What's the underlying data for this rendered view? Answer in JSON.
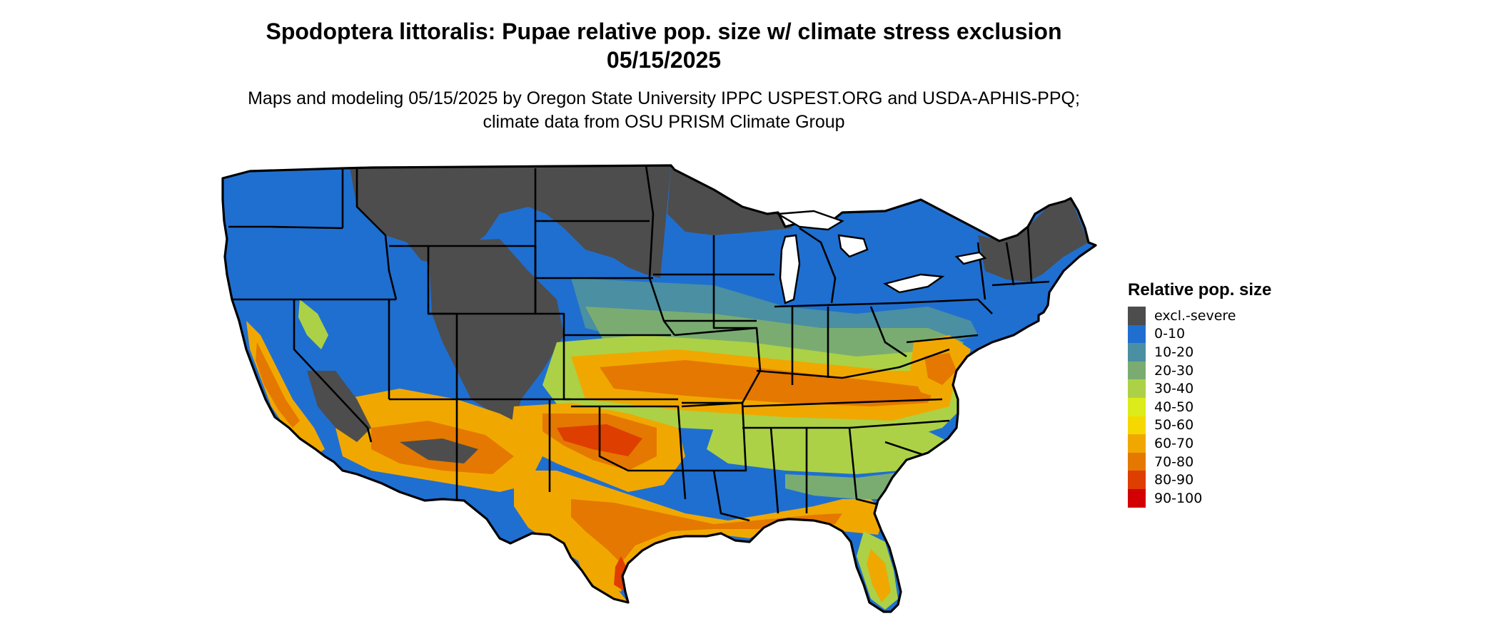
{
  "title": "Spodoptera littoralis: Pupae relative pop. size w/ climate stress exclusion 05/15/2025",
  "subtitle": "Maps and modeling 05/15/2025 by Oregon State University IPPC USPEST.ORG and USDA-APHIS-PPQ; climate data from OSU PRISM Climate Group",
  "map": {
    "region": "Contiguous United States",
    "legend": {
      "title": "Relative pop. size",
      "items": [
        {
          "label": "excl.-severe",
          "color": "#4d4d4d"
        },
        {
          "label": "0-10",
          "color": "#1f6fd1"
        },
        {
          "label": "10-20",
          "color": "#4a8fa2"
        },
        {
          "label": "20-30",
          "color": "#7aac72"
        },
        {
          "label": "30-40",
          "color": "#acd146"
        },
        {
          "label": "40-50",
          "color": "#dcec1a"
        },
        {
          "label": "50-60",
          "color": "#f5d800"
        },
        {
          "label": "60-70",
          "color": "#f0a800"
        },
        {
          "label": "70-80",
          "color": "#e57800"
        },
        {
          "label": "80-90",
          "color": "#de3e00"
        },
        {
          "label": "90-100",
          "color": "#d20000"
        }
      ]
    }
  }
}
